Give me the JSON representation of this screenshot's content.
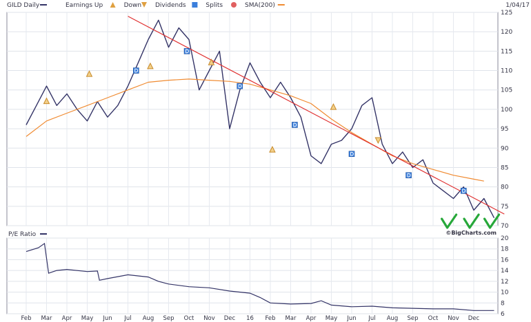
{
  "chart_data": [
    {
      "type": "line",
      "panel": "price",
      "ticker_label": "GILD Daily",
      "date_label": "1/04/17",
      "legend": [
        {
          "name": "GILD Daily",
          "color": "#333366",
          "marker": "line"
        },
        {
          "name": "Earnings Up",
          "color": "#e0a040",
          "marker": "triangle-up"
        },
        {
          "name": "Down",
          "color": "#e0a040",
          "marker": "triangle-down"
        },
        {
          "name": "Dividends",
          "color": "#3b7fdc",
          "marker": "square-d"
        },
        {
          "name": "Splits",
          "color": "#e06060",
          "marker": "circle-s"
        },
        {
          "name": "SMA(200)",
          "color": "#f08a30",
          "marker": "line"
        }
      ],
      "y_ticks": [
        70,
        75,
        80,
        85,
        90,
        95,
        100,
        105,
        110,
        115,
        120,
        125
      ],
      "ylim": [
        70,
        125
      ],
      "x_ticks": [
        "Feb",
        "Mar",
        "Apr",
        "May",
        "Jun",
        "Jul",
        "Aug",
        "Sep",
        "Oct",
        "Nov",
        "Dec",
        "16",
        "Feb",
        "Mar",
        "Apr",
        "May",
        "Jun",
        "Jul",
        "Aug",
        "Sep",
        "Oct",
        "Nov",
        "Dec"
      ],
      "grid": true,
      "series": [
        {
          "name": "GILD Daily",
          "color": "#333366",
          "x": [
            0,
            0.5,
            1,
            1.5,
            2,
            2.5,
            3,
            3.5,
            4,
            4.5,
            5,
            5.5,
            6,
            6.5,
            7,
            7.5,
            8,
            8.5,
            9,
            9.5,
            10,
            10.5,
            11,
            11.5,
            12,
            12.5,
            13,
            13.5,
            14,
            14.5,
            15,
            15.5,
            16,
            16.5,
            17,
            17.5,
            18,
            18.5,
            19,
            19.5,
            20,
            20.5,
            21,
            21.5,
            22,
            22.5,
            23
          ],
          "values": [
            96,
            101,
            106,
            101,
            104,
            100,
            97,
            102,
            98,
            101,
            106,
            112,
            118,
            123,
            116,
            121,
            118,
            105,
            110,
            115,
            95,
            105,
            112,
            107,
            103,
            107,
            103,
            98,
            88,
            86,
            91,
            92,
            95,
            101,
            103,
            91,
            86,
            89,
            85,
            87,
            81,
            79,
            77,
            80,
            74,
            77,
            72
          ]
        },
        {
          "name": "SMA(200)",
          "color": "#f08a30",
          "x": [
            0,
            1,
            2,
            3,
            4,
            5,
            6,
            7,
            8,
            9,
            10,
            11,
            12,
            13,
            14,
            15,
            16,
            17,
            18,
            19,
            20,
            21,
            22,
            22.5
          ],
          "values": [
            93,
            97,
            99,
            101,
            103,
            105,
            107,
            107.5,
            107.8,
            107.5,
            107.2,
            106.5,
            105,
            103.5,
            101.5,
            97.5,
            94,
            91,
            88,
            86,
            84.5,
            83,
            82,
            81.5
          ]
        },
        {
          "name": "Trendline",
          "color": "#e03030",
          "x": [
            5,
            23.5
          ],
          "values": [
            124,
            73
          ]
        }
      ],
      "events": [
        {
          "kind": "earnings-up",
          "x": 1,
          "y": 102
        },
        {
          "kind": "earnings-up",
          "x": 3.1,
          "y": 109
        },
        {
          "kind": "earnings-up",
          "x": 6.1,
          "y": 111
        },
        {
          "kind": "earnings-up",
          "x": 9.1,
          "y": 112
        },
        {
          "kind": "earnings-up",
          "x": 12.1,
          "y": 89.5
        },
        {
          "kind": "earnings-up",
          "x": 15.1,
          "y": 100.5
        },
        {
          "kind": "earnings-down",
          "x": 17.3,
          "y": 92
        },
        {
          "kind": "dividend",
          "x": 5.4,
          "y": 110
        },
        {
          "kind": "dividend",
          "x": 7.9,
          "y": 115
        },
        {
          "kind": "dividend",
          "x": 10.5,
          "y": 106
        },
        {
          "kind": "dividend",
          "x": 13.2,
          "y": 96
        },
        {
          "kind": "dividend",
          "x": 16,
          "y": 88.5
        },
        {
          "kind": "dividend",
          "x": 18.8,
          "y": 83
        },
        {
          "kind": "dividend",
          "x": 21.5,
          "y": 79
        }
      ],
      "annotation_checkmarks": 3,
      "watermark": "©BigCharts.com"
    },
    {
      "type": "line",
      "panel": "pe",
      "title": "P/E Ratio",
      "y_ticks": [
        6,
        8,
        10,
        12,
        14,
        16,
        18,
        20
      ],
      "ylim": [
        6,
        20
      ],
      "grid": true,
      "series": [
        {
          "name": "P/E Ratio",
          "color": "#333366",
          "x": [
            0,
            0.6,
            0.9,
            1.1,
            1.5,
            2,
            3,
            3.5,
            3.6,
            4,
            5,
            6,
            6.5,
            7,
            8,
            9,
            10,
            11,
            11.5,
            12,
            13,
            14,
            14.5,
            15,
            16,
            17,
            18,
            19,
            20,
            21,
            22,
            23
          ],
          "values": [
            17.5,
            18.2,
            19,
            13.5,
            14,
            14.2,
            13.8,
            13.9,
            12.2,
            12.5,
            13.2,
            12.8,
            12,
            11.5,
            11,
            10.8,
            10.2,
            9.8,
            9,
            8,
            7.8,
            7.9,
            8.4,
            7.6,
            7.3,
            7.4,
            7.1,
            7,
            6.9,
            6.9,
            6.6,
            6.6
          ]
        }
      ]
    }
  ]
}
